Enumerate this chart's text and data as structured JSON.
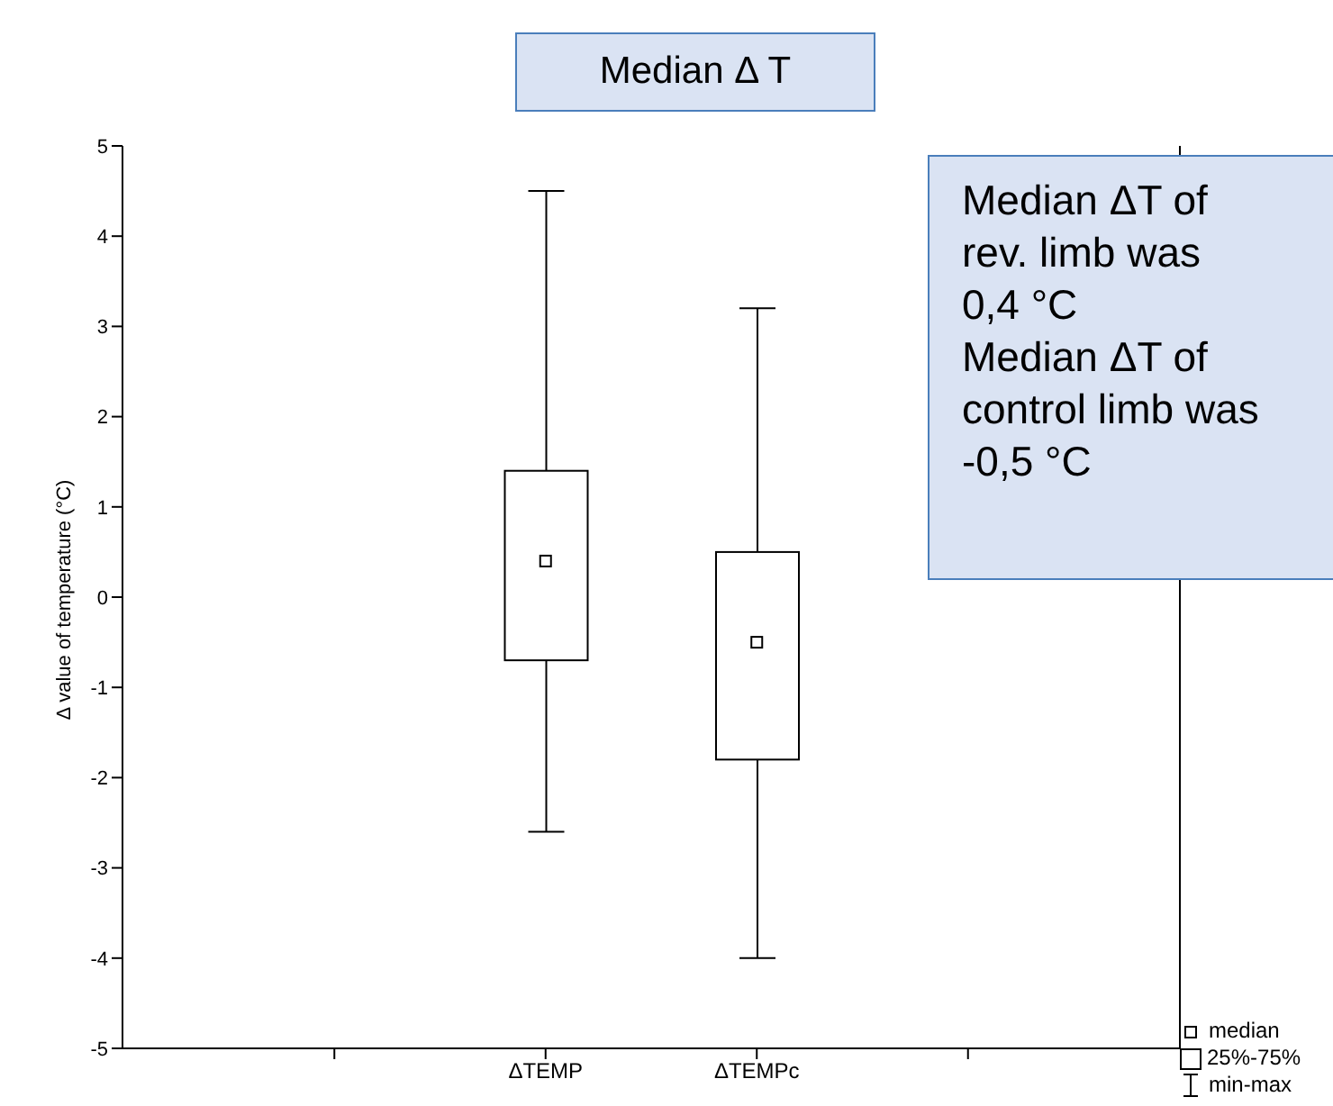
{
  "chart_data": {
    "type": "box",
    "title": "Median Δ T",
    "ylabel": "Δ value of temperature (°C)",
    "categories": [
      null,
      "ΔTEMP",
      "ΔTEMPc",
      null
    ],
    "series": [
      {
        "color": "#000000",
        "boxes": [
          null,
          {
            "low": -2.6,
            "q1": -0.7,
            "median": 0.4,
            "q3": 1.4,
            "high": 4.5
          },
          {
            "low": -4,
            "q1": -1.8,
            "median": -0.5,
            "q3": 0.5,
            "high": 3.2
          },
          null
        ]
      }
    ],
    "ylim": [
      -5,
      5
    ],
    "yticks": [
      -5,
      -4,
      -3,
      -2,
      -1,
      0,
      1,
      2,
      3,
      4,
      5
    ],
    "annotations": [
      "Median ΔT of rev. limb was 0,4 °C",
      "Median ΔT of control limb was -0,5 °C",
      "median",
      "25%-75%",
      "min-max"
    ]
  }
}
